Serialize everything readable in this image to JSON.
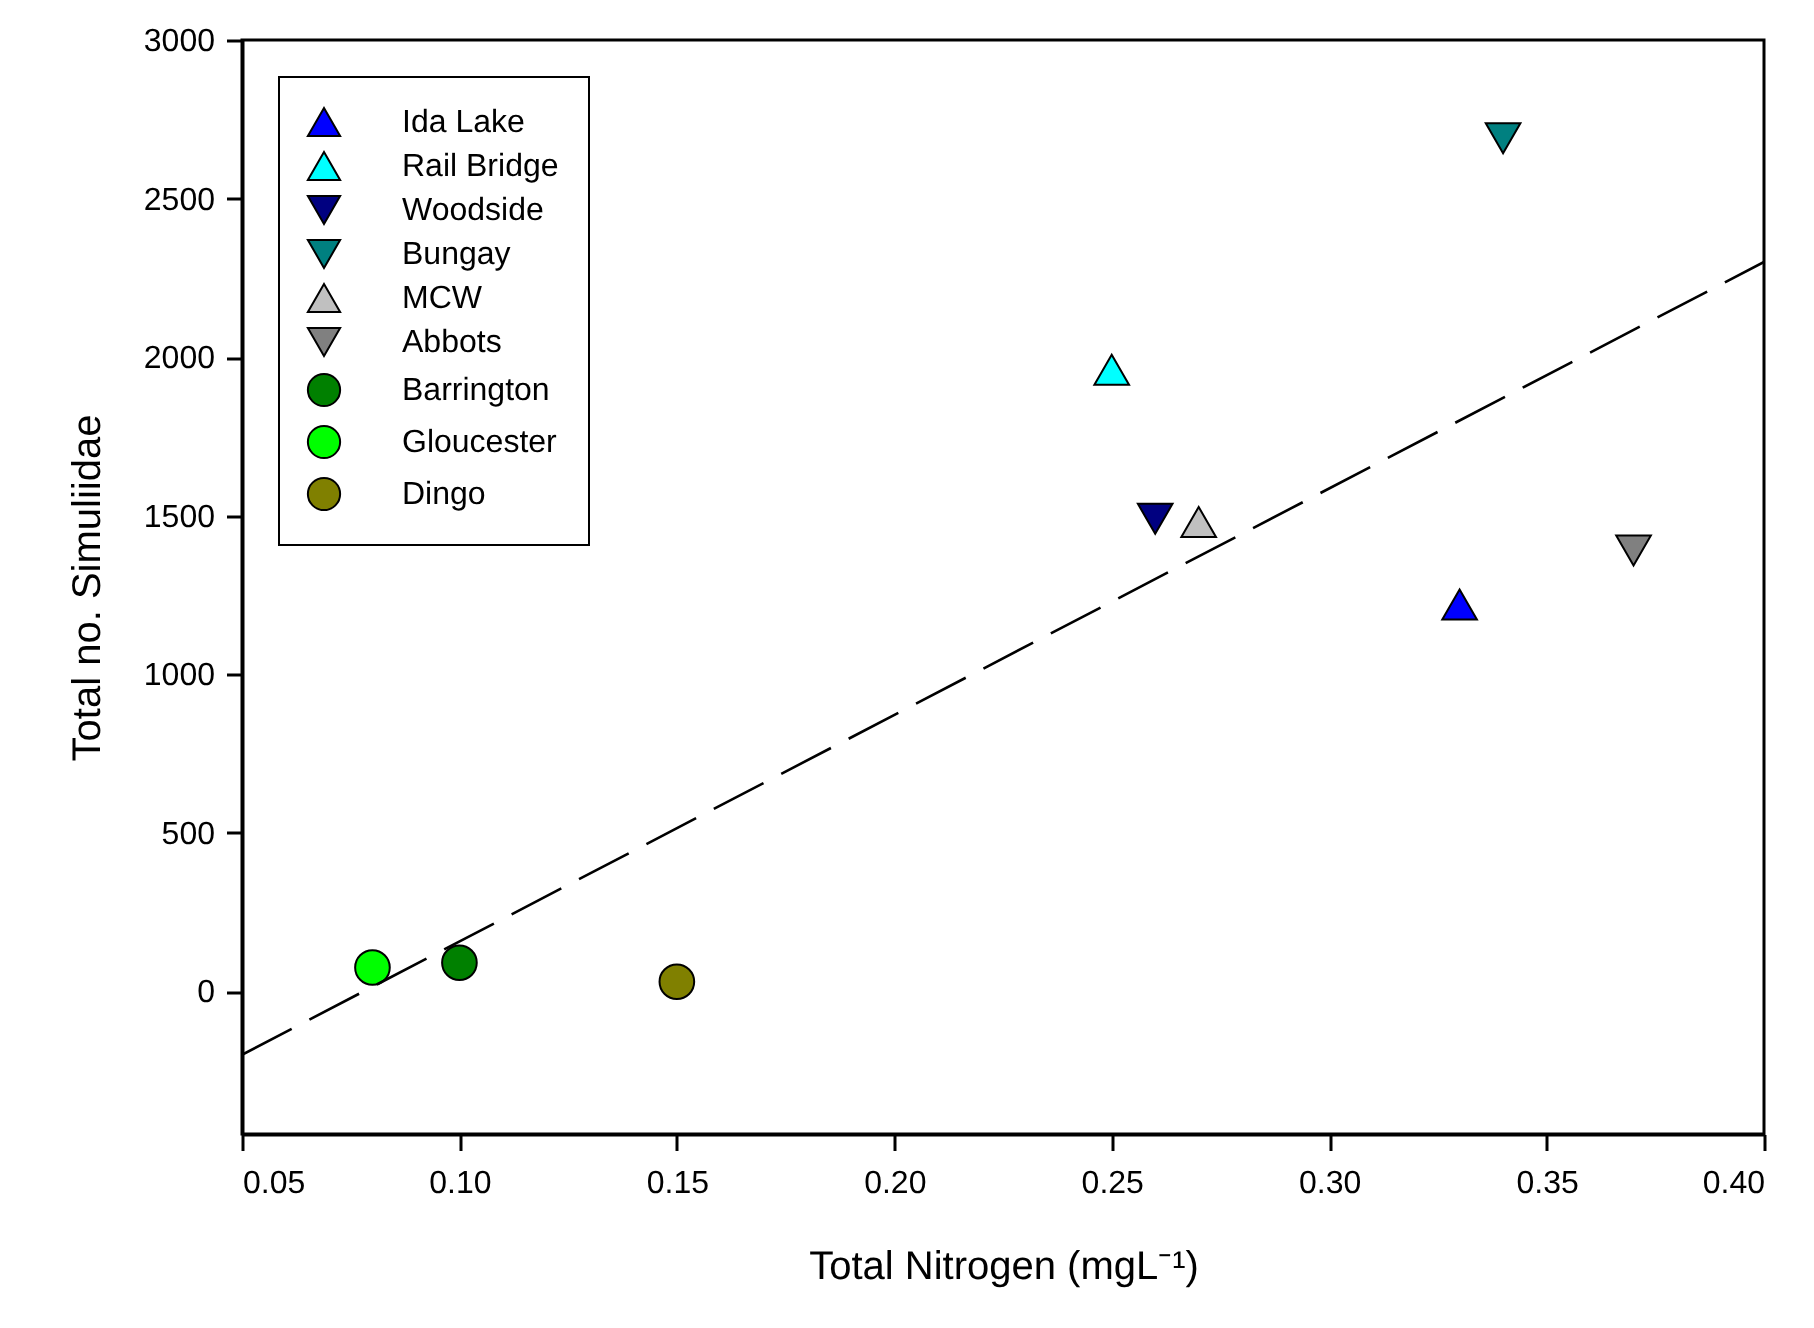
{
  "chart_data": {
    "type": "scatter",
    "xlabel": "Total Nitrogen (mgL⁻¹)",
    "ylabel": "Total no. Simuliidae",
    "xlim": [
      0.05,
      0.4
    ],
    "ylim": [
      -450,
      3000
    ],
    "xticks": [
      0.05,
      {
        "value": 0.1,
        "label": "0.10"
      },
      0.15,
      {
        "value": 0.2,
        "label": "0.20"
      },
      0.25,
      {
        "value": 0.3,
        "label": "0.30"
      },
      0.35,
      {
        "value": 0.4,
        "label": "0.40"
      }
    ],
    "yticks": [
      0,
      500,
      1000,
      1500,
      2000,
      2500,
      3000
    ],
    "grid": false,
    "legend": "top left",
    "series": [
      {
        "name": "Ida Lake",
        "color": "#0000ff",
        "marker": "triangle",
        "x": [
          0.33
        ],
        "values": [
          1220
        ]
      },
      {
        "name": "Rail Bridge",
        "color": "#00ffff",
        "marker": "triangle",
        "x": [
          0.25
        ],
        "values": [
          1960
        ]
      },
      {
        "name": "Woodside",
        "color": "#000080",
        "marker": "triangle-down",
        "x": [
          0.26
        ],
        "values": [
          1490
        ]
      },
      {
        "name": "Bungay",
        "color": "#008080",
        "marker": "triangle-down",
        "x": [
          0.34
        ],
        "values": [
          2690
        ]
      },
      {
        "name": "MCW",
        "color": "#c0c0c0",
        "marker": "triangle",
        "x": [
          0.27
        ],
        "values": [
          1480
        ]
      },
      {
        "name": "Abbots",
        "color": "#808080",
        "marker": "triangle-down",
        "x": [
          0.37
        ],
        "values": [
          1390
        ]
      },
      {
        "name": "Barrington",
        "color": "#008000",
        "marker": "circle",
        "x": [
          0.1
        ],
        "values": [
          90
        ]
      },
      {
        "name": "Gloucester",
        "color": "#00ff00",
        "marker": "circle",
        "x": [
          0.08
        ],
        "values": [
          75
        ]
      },
      {
        "name": "Dingo",
        "color": "#808000",
        "marker": "circle",
        "x": [
          0.15
        ],
        "values": [
          30
        ]
      },
      {
        "type": "line",
        "color": "#000000",
        "line_style": "dashed",
        "x": [
          0.05,
          0.4
        ],
        "values": [
          -200,
          2300
        ]
      }
    ]
  }
}
